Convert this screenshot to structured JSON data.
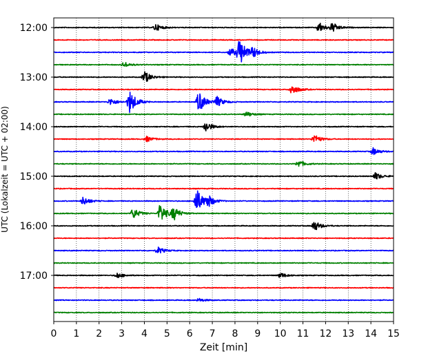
{
  "chart_data": {
    "type": "line",
    "title": "",
    "xlabel": "Zeit  [min]",
    "ylabel": "UTC (Lokalzeit = UTC + 02:00)",
    "xlim": [
      0,
      15
    ],
    "x_ticks": [
      0,
      1,
      2,
      3,
      4,
      5,
      6,
      7,
      8,
      9,
      10,
      11,
      12,
      13,
      14,
      15
    ],
    "row_labels": [
      "12:00",
      "13:00",
      "14:00",
      "15:00",
      "16:00",
      "17:00"
    ],
    "grid": "vertical dotted",
    "trace_interval_min": 15,
    "trace_colors": [
      "#000000",
      "#ff0000",
      "#0000ff",
      "#008000"
    ],
    "traces": [
      {
        "start": "12:00",
        "color": "#000000",
        "events": [
          {
            "t": 4.5,
            "amp": 0.4
          },
          {
            "t": 11.7,
            "amp": 0.6
          },
          {
            "t": 12.3,
            "amp": 0.5
          }
        ]
      },
      {
        "start": "12:15",
        "color": "#ff0000",
        "events": []
      },
      {
        "start": "12:30",
        "color": "#0000ff",
        "events": [
          {
            "t": 8.2,
            "amp": 1.6
          },
          {
            "t": 7.8,
            "amp": 0.5
          },
          {
            "t": 8.8,
            "amp": 0.5
          }
        ]
      },
      {
        "start": "12:45",
        "color": "#008000",
        "events": [
          {
            "t": 3.1,
            "amp": 0.3
          }
        ]
      },
      {
        "start": "13:00",
        "color": "#000000",
        "events": [
          {
            "t": 4.0,
            "amp": 0.7
          }
        ]
      },
      {
        "start": "13:15",
        "color": "#ff0000",
        "events": [
          {
            "t": 10.5,
            "amp": 0.6
          }
        ]
      },
      {
        "start": "13:30",
        "color": "#0000ff",
        "events": [
          {
            "t": 2.5,
            "amp": 0.4
          },
          {
            "t": 3.35,
            "amp": 1.3
          },
          {
            "t": 6.4,
            "amp": 1.2
          },
          {
            "t": 7.2,
            "amp": 0.6
          }
        ]
      },
      {
        "start": "13:45",
        "color": "#008000",
        "events": [
          {
            "t": 8.5,
            "amp": 0.3
          }
        ]
      },
      {
        "start": "14:00",
        "color": "#000000",
        "events": [
          {
            "t": 6.7,
            "amp": 0.6
          }
        ]
      },
      {
        "start": "14:15",
        "color": "#ff0000",
        "events": [
          {
            "t": 4.1,
            "amp": 0.3
          },
          {
            "t": 11.5,
            "amp": 0.5
          }
        ]
      },
      {
        "start": "14:30",
        "color": "#0000ff",
        "events": [
          {
            "t": 14.1,
            "amp": 0.4
          }
        ]
      },
      {
        "start": "14:45",
        "color": "#008000",
        "events": [
          {
            "t": 10.8,
            "amp": 0.4
          }
        ]
      },
      {
        "start": "15:00",
        "color": "#000000",
        "events": [
          {
            "t": 14.2,
            "amp": 0.4
          }
        ]
      },
      {
        "start": "15:15",
        "color": "#ff0000",
        "events": []
      },
      {
        "start": "15:30",
        "color": "#0000ff",
        "events": [
          {
            "t": 1.3,
            "amp": 0.5
          },
          {
            "t": 6.3,
            "amp": 1.4
          },
          {
            "t": 6.8,
            "amp": 0.6
          }
        ]
      },
      {
        "start": "15:45",
        "color": "#008000",
        "events": [
          {
            "t": 3.5,
            "amp": 0.6
          },
          {
            "t": 4.7,
            "amp": 1.1
          },
          {
            "t": 5.3,
            "amp": 0.7
          }
        ]
      },
      {
        "start": "16:00",
        "color": "#000000",
        "events": [
          {
            "t": 11.5,
            "amp": 0.6
          }
        ]
      },
      {
        "start": "16:15",
        "color": "#ff0000",
        "events": []
      },
      {
        "start": "16:30",
        "color": "#0000ff",
        "events": [
          {
            "t": 4.6,
            "amp": 0.4
          }
        ]
      },
      {
        "start": "16:45",
        "color": "#008000",
        "events": []
      },
      {
        "start": "17:00",
        "color": "#000000",
        "events": [
          {
            "t": 2.8,
            "amp": 0.3
          },
          {
            "t": 10.0,
            "amp": 0.3
          }
        ]
      },
      {
        "start": "17:15",
        "color": "#ff0000",
        "events": []
      },
      {
        "start": "17:30",
        "color": "#0000ff",
        "events": [
          {
            "t": 6.4,
            "amp": 0.2
          }
        ]
      },
      {
        "start": "17:45",
        "color": "#008000",
        "events": []
      }
    ]
  }
}
